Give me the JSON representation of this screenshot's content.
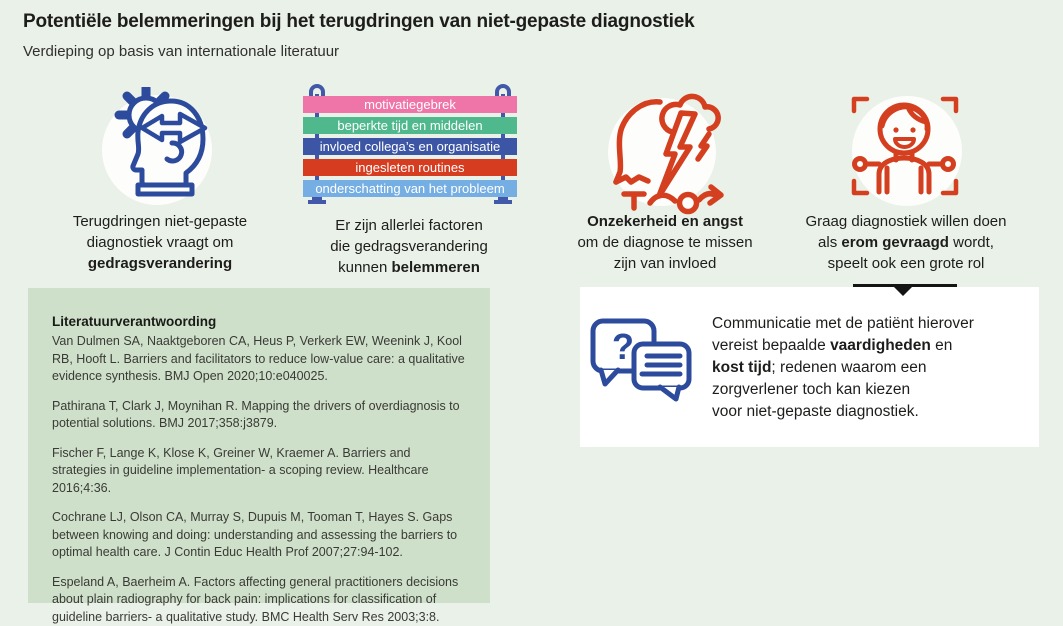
{
  "header": {
    "title": "Potentiële belemmeringen bij het terugdringen van niet-gepaste diagnostiek",
    "subtitle": "Verdieping op basis van internationale literatuur"
  },
  "columns": [
    {
      "id": "gedragsverandering",
      "icon": "gear-head-arrows-icon",
      "caption": [
        {
          "t": "Terugdringen niet-gepaste"
        },
        {
          "br": true
        },
        {
          "t": "diagnostiek vraagt om"
        },
        {
          "br": true
        },
        {
          "t": "gedragsverandering",
          "b": true
        }
      ]
    },
    {
      "id": "belemmerende-factoren",
      "icon": "hanging-banners",
      "banners": [
        {
          "label": "motivatiegebrek",
          "color": "#ef74a8"
        },
        {
          "label": "beperkte tijd en middelen",
          "color": "#4fb88c"
        },
        {
          "label": "invloed collega’s en organisatie",
          "color": "#3c56a5"
        },
        {
          "label": "ingesleten routines",
          "color": "#d63c20"
        },
        {
          "label": "onderschatting van het probleem",
          "color": "#74aee3"
        }
      ],
      "caption": [
        {
          "t": "Er zijn allerlei factoren"
        },
        {
          "br": true
        },
        {
          "t": "die gedragsverandering"
        },
        {
          "br": true
        },
        {
          "t": "kunnen "
        },
        {
          "t": "belemmeren",
          "b": true
        }
      ]
    },
    {
      "id": "onzekerheid-angst",
      "icon": "storm-head-icon",
      "caption": [
        {
          "t": "Onzekerheid en angst",
          "b": true
        },
        {
          "br": true
        },
        {
          "t": "om de diagnose te missen"
        },
        {
          "br": true
        },
        {
          "t": "zijn van invloed"
        }
      ]
    },
    {
      "id": "gevraagde-diagnostiek",
      "icon": "patient-portrait-icon",
      "caption": [
        {
          "t": "Graag diagnostiek willen doen"
        },
        {
          "br": true
        },
        {
          "t": "als "
        },
        {
          "t": "erom gevraagd",
          "b": true
        },
        {
          "t": " wordt,"
        },
        {
          "br": true
        },
        {
          "t": "speelt ook een grote rol"
        }
      ]
    }
  ],
  "literature": {
    "heading": "Literatuurverantwoording",
    "references": [
      "Van Dulmen SA, Naaktgeboren CA, Heus P, Verkerk EW, Weenink J, Kool RB, Hooft L. Barriers and facilitators to reduce low-value care: a qualitative evidence synthesis. BMJ Open 2020;10:e040025.",
      "Pathirana T, Clark J, Moynihan R. Mapping the drivers of overdiagnosis to potential solutions. BMJ 2017;358:j3879.",
      "Fischer F, Lange K, Klose K, Greiner W, Kraemer A. Barriers and strategies in guideline implementation- a scoping review. Healthcare 2016;4:36.",
      "Cochrane LJ, Olson CA, Murray S, Dupuis M, Tooman T, Hayes S. Gaps between knowing and doing: understanding and assessing the barriers to optimal health care. J Contin Educ Health Prof 2007;27:94-102.",
      "Espeland A, Baerheim A. Factors affecting general practitioners decisions about plain radiography for back pain: implications for classification of guideline barriers- a qualitative study. BMC Health Serv Res 2003;3:8."
    ]
  },
  "note": {
    "icon": "speech-bubbles-question-icon",
    "segments": [
      {
        "t": "Communicatie met de patiënt hierover"
      },
      {
        "br": true
      },
      {
        "t": "vereist bepaalde "
      },
      {
        "t": "vaardigheden",
        "b": true
      },
      {
        "t": " en"
      },
      {
        "br": true
      },
      {
        "t": "kost tijd",
        "b": true
      },
      {
        "t": "; redenen waarom een"
      },
      {
        "br": true
      },
      {
        "t": "zorgverlener toch kan kiezen"
      },
      {
        "br": true
      },
      {
        "t": "voor niet-gepaste diagnostiek."
      }
    ]
  },
  "colors": {
    "background": "#eaf1e8",
    "literature_box": "#cfe0ca",
    "note_box": "#ffffff",
    "icon_blue": "#2c4b9c",
    "icon_red": "#d4401f",
    "pole_blue": "#4159a8",
    "text": "#1d1d1b",
    "arrow_black": "#141414"
  }
}
